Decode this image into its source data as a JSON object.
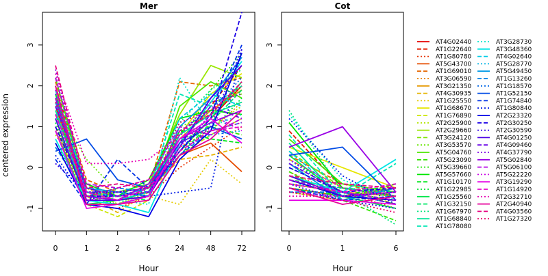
{
  "chart_data": [
    {
      "type": "line",
      "title": "Mer",
      "xlabel": "Hour",
      "ylabel": "centered expression",
      "categories": [
        "0",
        "1",
        "2",
        "6",
        "24",
        "48",
        "72"
      ],
      "yticks": [
        -1,
        0,
        1,
        2,
        3
      ],
      "ylim": [
        -1.55,
        3.8
      ],
      "grid": false,
      "series": [
        {
          "name": "AT4G02440",
          "values": [
            1.5,
            -0.7,
            -0.8,
            -0.6,
            0.4,
            1.2,
            2.0
          ]
        },
        {
          "name": "AT1G22640",
          "values": [
            2.0,
            -0.5,
            -0.7,
            -0.5,
            0.6,
            1.5,
            2.5
          ]
        },
        {
          "name": "AT1G80780",
          "values": [
            1.0,
            -0.9,
            -1.0,
            -0.7,
            0.0,
            0.5,
            1.0
          ]
        },
        {
          "name": "AT5G43700",
          "values": [
            1.8,
            -0.6,
            -0.7,
            -0.6,
            0.3,
            0.6,
            -0.1
          ]
        },
        {
          "name": "AT1G69010",
          "values": [
            2.1,
            -0.3,
            -0.6,
            -0.5,
            2.1,
            2.0,
            2.2
          ]
        },
        {
          "name": "AT3G06590",
          "values": [
            1.6,
            -0.8,
            -0.9,
            -0.7,
            0.5,
            0.9,
            1.6
          ]
        },
        {
          "name": "AT3G21350",
          "values": [
            1.3,
            -0.6,
            -0.8,
            -0.4,
            0.7,
            1.4,
            1.9
          ]
        },
        {
          "name": "AT4G30935",
          "values": [
            0.9,
            -0.7,
            -1.1,
            -0.6,
            0.2,
            0.3,
            0.5
          ]
        },
        {
          "name": "AT1G25550",
          "values": [
            1.4,
            -0.5,
            -0.9,
            -0.7,
            -0.9,
            0.2,
            -0.4
          ]
        },
        {
          "name": "AT1G68670",
          "values": [
            1.7,
            -0.6,
            -0.7,
            -0.5,
            0.8,
            1.8,
            2.3
          ]
        },
        {
          "name": "AT1G76890",
          "values": [
            1.2,
            -0.9,
            -1.2,
            -0.8,
            0.3,
            0.8,
            1.2
          ]
        },
        {
          "name": "AT2G25900",
          "values": [
            0.8,
            -0.4,
            -0.9,
            -0.6,
            0.4,
            1.0,
            1.5
          ]
        },
        {
          "name": "AT2G29660",
          "values": [
            1.9,
            -0.7,
            -0.6,
            -0.4,
            1.3,
            2.5,
            2.2
          ]
        },
        {
          "name": "AT3G24120",
          "values": [
            1.0,
            -0.5,
            -0.7,
            -0.6,
            0.6,
            1.6,
            1.8
          ]
        },
        {
          "name": "AT3G53570",
          "values": [
            1.5,
            0.2,
            -0.6,
            -0.5,
            1.0,
            1.3,
            2.0
          ]
        },
        {
          "name": "AT5G04760",
          "values": [
            2.2,
            -0.6,
            -0.8,
            -0.7,
            1.5,
            2.1,
            1.7
          ]
        },
        {
          "name": "AT5G23090",
          "values": [
            1.7,
            -0.8,
            -0.8,
            -0.6,
            0.9,
            1.0,
            0.8
          ]
        },
        {
          "name": "AT5G39660",
          "values": [
            0.6,
            -0.7,
            -0.9,
            -0.5,
            0.5,
            1.9,
            2.8
          ]
        },
        {
          "name": "AT5G57660",
          "values": [
            1.3,
            -0.4,
            -0.7,
            -0.3,
            1.2,
            1.4,
            1.3
          ]
        },
        {
          "name": "AT1G10170",
          "values": [
            1.8,
            -0.6,
            -0.8,
            -0.7,
            0.9,
            0.7,
            0.6
          ]
        },
        {
          "name": "AT1G22985",
          "values": [
            1.1,
            -0.8,
            -0.7,
            -0.6,
            0.7,
            0.9,
            1.7
          ]
        },
        {
          "name": "AT1G25560",
          "values": [
            0.9,
            -0.9,
            -0.8,
            -0.6,
            0.4,
            1.2,
            2.1
          ]
        },
        {
          "name": "AT1G32150",
          "values": [
            1.6,
            -0.7,
            -0.7,
            -0.8,
            0.3,
            1.1,
            1.9
          ]
        },
        {
          "name": "AT1G67970",
          "values": [
            2.0,
            -0.5,
            -0.6,
            -0.4,
            1.1,
            1.9,
            2.4
          ]
        },
        {
          "name": "AT1G68840",
          "values": [
            1.4,
            -0.8,
            -0.9,
            -0.7,
            0.8,
            1.3,
            1.6
          ]
        },
        {
          "name": "AT1G78080",
          "values": [
            1.5,
            -0.6,
            -0.8,
            -0.6,
            1.8,
            1.5,
            2.0
          ]
        },
        {
          "name": "AT3G28730",
          "values": [
            1.2,
            -0.7,
            -0.8,
            -0.9,
            2.2,
            1.0,
            1.3
          ]
        },
        {
          "name": "AT3G48360",
          "values": [
            0.7,
            -0.8,
            -0.9,
            -1.1,
            0.6,
            1.6,
            2.6
          ]
        },
        {
          "name": "AT4G02640",
          "values": [
            1.9,
            -0.6,
            -0.7,
            -0.5,
            1.2,
            1.8,
            1.5
          ]
        },
        {
          "name": "AT5G28770",
          "values": [
            1.3,
            -0.7,
            -0.8,
            -0.6,
            0.5,
            0.8,
            0.9
          ]
        },
        {
          "name": "AT5G49450",
          "values": [
            1.6,
            -0.5,
            -0.6,
            -0.7,
            1.0,
            1.7,
            2.7
          ]
        },
        {
          "name": "AT1G13260",
          "values": [
            0.5,
            -0.7,
            -0.5,
            -0.6,
            0.3,
            0.9,
            1.1
          ]
        },
        {
          "name": "AT1G18570",
          "values": [
            1.8,
            -0.6,
            -0.7,
            -0.5,
            0.9,
            1.4,
            2.2
          ]
        },
        {
          "name": "AT1G52150",
          "values": [
            0.4,
            0.7,
            -0.3,
            -0.5,
            0.6,
            1.0,
            0.7
          ]
        },
        {
          "name": "AT1G74840",
          "values": [
            0.2,
            -0.9,
            0.2,
            -0.5,
            0.4,
            1.3,
            3.0
          ]
        },
        {
          "name": "AT1G80840",
          "values": [
            0.3,
            -0.8,
            -0.6,
            -0.7,
            -0.6,
            -0.5,
            2.9
          ]
        },
        {
          "name": "AT2G23320",
          "values": [
            0.6,
            -0.9,
            -1.0,
            -1.2,
            0.2,
            0.9,
            2.8
          ]
        },
        {
          "name": "AT2G30250",
          "values": [
            1.0,
            -0.7,
            -0.7,
            -0.6,
            0.4,
            1.2,
            3.8
          ]
        },
        {
          "name": "AT2G30590",
          "values": [
            0.1,
            -0.6,
            -0.6,
            -0.5,
            0.3,
            1.0,
            2.9
          ]
        },
        {
          "name": "AT4G01250",
          "values": [
            1.2,
            -0.8,
            -0.8,
            -0.7,
            0.5,
            1.7,
            2.5
          ]
        },
        {
          "name": "AT4G09460",
          "values": [
            1.5,
            -0.5,
            -0.7,
            -0.6,
            0.6,
            1.5,
            1.2
          ]
        },
        {
          "name": "AT4G37790",
          "values": [
            2.4,
            -0.6,
            -0.6,
            -0.5,
            0.8,
            1.6,
            1.8
          ]
        },
        {
          "name": "AT5G02840",
          "values": [
            1.7,
            -0.7,
            -0.8,
            -0.4,
            0.7,
            1.1,
            1.4
          ]
        },
        {
          "name": "AT5G06100",
          "values": [
            2.2,
            -0.4,
            -0.5,
            -0.3,
            1.0,
            0.8,
            1.2
          ]
        },
        {
          "name": "AT5G22220",
          "values": [
            1.9,
            -0.8,
            -0.7,
            -0.6,
            0.5,
            1.3,
            0.9
          ]
        },
        {
          "name": "AT3G19290",
          "values": [
            0.9,
            -1.0,
            -0.9,
            -0.7,
            0.7,
            1.2,
            0.6
          ]
        },
        {
          "name": "AT1G14920",
          "values": [
            1.3,
            -0.6,
            -0.8,
            -0.5,
            0.4,
            0.9,
            1.0
          ]
        },
        {
          "name": "AT2G32710",
          "values": [
            2.3,
            0.1,
            0.1,
            0.2,
            0.8,
            0.9,
            1.1
          ]
        },
        {
          "name": "AT2G40940",
          "values": [
            2.0,
            -0.9,
            -0.9,
            -0.8,
            0.3,
            0.7,
            1.4
          ]
        },
        {
          "name": "AT4G03560",
          "values": [
            2.5,
            -0.5,
            -0.4,
            -0.5,
            0.9,
            1.3,
            2.1
          ]
        },
        {
          "name": "AT1G27320",
          "values": [
            1.6,
            -0.7,
            -0.5,
            -0.3,
            1.1,
            1.4,
            2.0
          ]
        }
      ]
    },
    {
      "type": "line",
      "title": "Cot",
      "xlabel": "Hour",
      "categories": [
        "0",
        "1",
        "6"
      ],
      "yticks": [
        -1,
        0,
        1,
        2,
        3
      ],
      "ylim": [
        -1.55,
        3.8
      ],
      "grid": false,
      "series": [
        {
          "name": "AT4G02440",
          "values": [
            -0.3,
            -0.7,
            -0.5
          ]
        },
        {
          "name": "AT1G22640",
          "values": [
            0.9,
            -0.5,
            -0.6
          ]
        },
        {
          "name": "AT1G80780",
          "values": [
            -0.2,
            -0.6,
            -1.0
          ]
        },
        {
          "name": "AT5G43700",
          "values": [
            -0.5,
            -0.7,
            -0.8
          ]
        },
        {
          "name": "AT1G69010",
          "values": [
            0.3,
            -0.4,
            -0.7
          ]
        },
        {
          "name": "AT3G06590",
          "values": [
            -0.1,
            -0.7,
            -0.5
          ]
        },
        {
          "name": "AT3G21350",
          "values": [
            -0.4,
            -0.6,
            -0.7
          ]
        },
        {
          "name": "AT4G30935",
          "values": [
            0.2,
            -0.5,
            -0.9
          ]
        },
        {
          "name": "AT1G25550",
          "values": [
            -0.3,
            -0.7,
            -0.6
          ]
        },
        {
          "name": "AT1G68670",
          "values": [
            0.5,
            0.0,
            -0.5
          ]
        },
        {
          "name": "AT1G76890",
          "values": [
            -0.6,
            -0.8,
            -0.4
          ]
        },
        {
          "name": "AT2G25900",
          "values": [
            0.1,
            -0.6,
            -0.8
          ]
        },
        {
          "name": "AT2G29660",
          "values": [
            -0.2,
            -0.7,
            -0.5
          ]
        },
        {
          "name": "AT3G24120",
          "values": [
            0.4,
            -0.5,
            -0.7
          ]
        },
        {
          "name": "AT3G53570",
          "values": [
            -0.4,
            -0.6,
            -0.9
          ]
        },
        {
          "name": "AT5G04760",
          "values": [
            0.7,
            -0.4,
            -0.6
          ]
        },
        {
          "name": "AT5G23090",
          "values": [
            -0.1,
            -0.8,
            -1.3
          ]
        },
        {
          "name": "AT5G39660",
          "values": [
            0.2,
            -0.6,
            -0.8
          ]
        },
        {
          "name": "AT5G57660",
          "values": [
            1.1,
            -0.5,
            -0.7
          ]
        },
        {
          "name": "AT1G10170",
          "values": [
            -0.5,
            -0.7,
            -0.4
          ]
        },
        {
          "name": "AT1G22985",
          "values": [
            0.0,
            -0.6,
            -0.9
          ]
        },
        {
          "name": "AT1G25560",
          "values": [
            0.3,
            -0.7,
            -1.0
          ]
        },
        {
          "name": "AT1G32150",
          "values": [
            -0.3,
            -0.5,
            -0.6
          ]
        },
        {
          "name": "AT1G67970",
          "values": [
            1.4,
            -0.6,
            -1.4
          ]
        },
        {
          "name": "AT1G68840",
          "values": [
            0.6,
            -0.8,
            -0.5
          ]
        },
        {
          "name": "AT1G78080",
          "values": [
            0.8,
            -0.7,
            0.1
          ]
        },
        {
          "name": "AT3G28730",
          "values": [
            1.3,
            -0.3,
            -0.8
          ]
        },
        {
          "name": "AT3G48360",
          "values": [
            -0.2,
            -0.6,
            0.2
          ]
        },
        {
          "name": "AT4G02640",
          "values": [
            0.4,
            -0.7,
            -0.6
          ]
        },
        {
          "name": "AT5G28770",
          "values": [
            -0.4,
            -0.5,
            -0.7
          ]
        },
        {
          "name": "AT5G49450",
          "values": [
            0.1,
            -0.8,
            -0.5
          ]
        },
        {
          "name": "AT1G13260",
          "values": [
            -0.6,
            -0.6,
            -0.9
          ]
        },
        {
          "name": "AT1G18570",
          "values": [
            0.2,
            -0.7,
            -0.6
          ]
        },
        {
          "name": "AT1G52150",
          "values": [
            0.3,
            0.5,
            -0.8
          ]
        },
        {
          "name": "AT1G74840",
          "values": [
            -0.5,
            -0.8,
            -0.7
          ]
        },
        {
          "name": "AT1G80840",
          "values": [
            1.2,
            -0.2,
            -0.9
          ]
        },
        {
          "name": "AT2G23320",
          "values": [
            -0.3,
            -0.7,
            -0.8
          ]
        },
        {
          "name": "AT2G30250",
          "values": [
            0.0,
            -0.6,
            -0.5
          ]
        },
        {
          "name": "AT2G30590",
          "values": [
            -0.4,
            -0.8,
            -1.0
          ]
        },
        {
          "name": "AT4G01250",
          "values": [
            -0.2,
            -0.7,
            -0.6
          ]
        },
        {
          "name": "AT4G09460",
          "values": [
            0.1,
            -0.6,
            -0.9
          ]
        },
        {
          "name": "AT4G37790",
          "values": [
            -0.6,
            -0.7,
            -0.5
          ]
        },
        {
          "name": "AT5G02840",
          "values": [
            0.5,
            1.0,
            -0.6
          ]
        },
        {
          "name": "AT5G06100",
          "values": [
            -0.3,
            -0.6,
            -0.8
          ]
        },
        {
          "name": "AT5G22220",
          "values": [
            0.2,
            -0.5,
            -0.7
          ]
        },
        {
          "name": "AT3G19290",
          "values": [
            -0.8,
            -0.8,
            -0.9
          ]
        },
        {
          "name": "AT1G14920",
          "values": [
            -0.4,
            -0.6,
            -0.4
          ]
        },
        {
          "name": "AT2G32710",
          "values": [
            -0.7,
            -0.7,
            -0.6
          ]
        },
        {
          "name": "AT2G40940",
          "values": [
            -0.5,
            -0.9,
            -0.7
          ]
        },
        {
          "name": "AT4G03560",
          "values": [
            -0.2,
            -0.4,
            -0.5
          ]
        },
        {
          "name": "AT1G27320",
          "values": [
            -0.6,
            -0.8,
            -1.1
          ]
        }
      ]
    }
  ]
}
